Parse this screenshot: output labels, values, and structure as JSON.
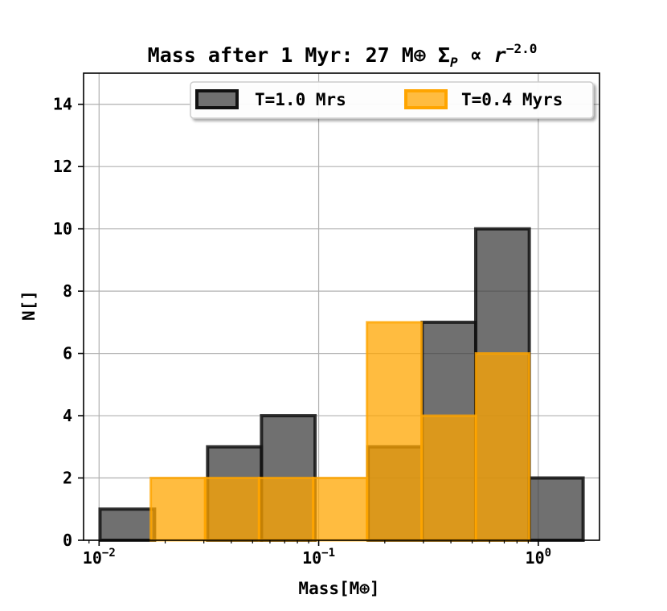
{
  "chart_data": {
    "type": "bar",
    "title": "Mass after 1 Myr: 27 M⊕ Σ",
    "title_math_sub": "P",
    "title_math_rest": " ∝ r",
    "title_math_sup": "−2.0",
    "xlabel": "Mass[M⊕]",
    "ylabel": "N[]",
    "x_scale": "log",
    "xlim": [
      0.0085,
      1.9
    ],
    "ylim": [
      0,
      15
    ],
    "grid": true,
    "legend_position": "top-right",
    "x_ticks": [
      {
        "value": 0.01,
        "base": "10",
        "exp": "−2"
      },
      {
        "value": 0.1,
        "base": "10",
        "exp": "−1"
      },
      {
        "value": 1,
        "base": "10",
        "exp": "0"
      }
    ],
    "y_ticks": [
      0,
      2,
      4,
      6,
      8,
      10,
      12,
      14
    ],
    "series": [
      {
        "name": "T=1.0 Mrs",
        "fill": "#404040",
        "edge": "#111111",
        "bins": [
          {
            "x0": 0.0101,
            "x1": 0.0179,
            "value": 1
          },
          {
            "x0": 0.0179,
            "x1": 0.0312,
            "value": 0
          },
          {
            "x0": 0.0312,
            "x1": 0.0549,
            "value": 3
          },
          {
            "x0": 0.0549,
            "x1": 0.0963,
            "value": 4
          },
          {
            "x0": 0.0963,
            "x1": 0.168,
            "value": 0
          },
          {
            "x0": 0.168,
            "x1": 0.296,
            "value": 3
          },
          {
            "x0": 0.296,
            "x1": 0.519,
            "value": 7
          },
          {
            "x0": 0.519,
            "x1": 0.91,
            "value": 10
          },
          {
            "x0": 0.91,
            "x1": 1.6,
            "value": 2
          }
        ]
      },
      {
        "name": "T=0.4 Myrs",
        "fill": "#FFA500",
        "edge": "#FFA500",
        "bins": [
          {
            "x0": 0.0172,
            "x1": 0.0304,
            "value": 2
          },
          {
            "x0": 0.0304,
            "x1": 0.0535,
            "value": 2
          },
          {
            "x0": 0.0535,
            "x1": 0.0944,
            "value": 2
          },
          {
            "x0": 0.0944,
            "x1": 0.166,
            "value": 2
          },
          {
            "x0": 0.166,
            "x1": 0.294,
            "value": 7
          },
          {
            "x0": 0.294,
            "x1": 0.52,
            "value": 4
          },
          {
            "x0": 0.52,
            "x1": 0.91,
            "value": 6
          }
        ]
      }
    ]
  }
}
